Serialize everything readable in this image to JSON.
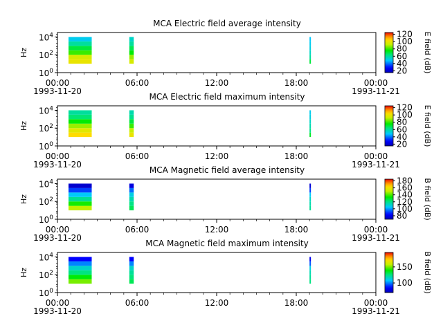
{
  "chart_data": [
    {
      "type": "heatmap",
      "title": "MCA  Electric field average intensity",
      "ylabel": "Hz",
      "yscale": "log",
      "ylim": [
        1,
        31623
      ],
      "yticks": [
        "10^4",
        "10^2",
        "10^0"
      ],
      "xlim": [
        "1993-11-20 00:00",
        "1993-11-21 00:00"
      ],
      "xticks": [
        "00:00",
        "06:00",
        "12:00",
        "18:00",
        "00:00"
      ],
      "xdates": [
        "1993-11-20",
        "1993-11-21"
      ],
      "colorbar": {
        "label": "E field (dB)",
        "min": 15,
        "max": 125,
        "ticks": [
          "120",
          "100",
          "80",
          "60",
          "40",
          "20"
        ],
        "tick_values": [
          120,
          100,
          80,
          60,
          40,
          20
        ]
      },
      "data_intervals": [
        {
          "start": "00:50",
          "end": "02:35",
          "freq_range": [
            10,
            10000
          ],
          "levels_dB_low_to_high_freq": [
            100,
            95,
            80,
            70,
            60,
            50
          ]
        },
        {
          "start": "05:25",
          "end": "05:45",
          "freq_range": [
            10,
            10000
          ],
          "levels_dB_low_to_high_freq": [
            95,
            88,
            75,
            68,
            60,
            55
          ]
        },
        {
          "start": "19:00",
          "end": "19:05",
          "freq_range": [
            10,
            10000
          ],
          "levels_dB_low_to_high_freq": [
            70,
            60,
            55,
            52,
            50,
            48
          ]
        }
      ]
    },
    {
      "type": "heatmap",
      "title": "MCA  Electric field maximum intensity",
      "ylabel": "Hz",
      "yscale": "log",
      "ylim": [
        1,
        31623
      ],
      "yticks": [
        "10^4",
        "10^2",
        "10^0"
      ],
      "xlim": [
        "1993-11-20 00:00",
        "1993-11-21 00:00"
      ],
      "xticks": [
        "00:00",
        "06:00",
        "12:00",
        "18:00",
        "00:00"
      ],
      "xdates": [
        "1993-11-20",
        "1993-11-21"
      ],
      "colorbar": {
        "label": "E field (dB)",
        "min": 15,
        "max": 125,
        "ticks": [
          "120",
          "100",
          "80",
          "60",
          "40",
          "20"
        ],
        "tick_values": [
          120,
          100,
          80,
          60,
          40,
          20
        ]
      },
      "data_intervals": [
        {
          "start": "00:50",
          "end": "02:35",
          "freq_range": [
            10,
            10000
          ],
          "levels_dB_low_to_high_freq": [
            105,
            98,
            88,
            75,
            65,
            60
          ]
        },
        {
          "start": "05:25",
          "end": "05:45",
          "freq_range": [
            10,
            10000
          ],
          "levels_dB_low_to_high_freq": [
            100,
            92,
            80,
            70,
            62,
            58
          ]
        },
        {
          "start": "19:00",
          "end": "19:05",
          "freq_range": [
            10,
            10000
          ],
          "levels_dB_low_to_high_freq": [
            72,
            62,
            58,
            55,
            52,
            50
          ]
        }
      ]
    },
    {
      "type": "heatmap",
      "title": "MCA  Magnetic field average intensity",
      "ylabel": "Hz",
      "yscale": "log",
      "ylim": [
        1,
        31623
      ],
      "yticks": [
        "10^4",
        "10^2",
        "10^0"
      ],
      "xlim": [
        "1993-11-20 00:00",
        "1993-11-21 00:00"
      ],
      "xticks": [
        "00:00",
        "06:00",
        "12:00",
        "18:00",
        "00:00"
      ],
      "xdates": [
        "1993-11-20",
        "1993-11-21"
      ],
      "colorbar": {
        "label": "B field (dB)",
        "min": 70,
        "max": 185,
        "ticks": [
          "180",
          "160",
          "140",
          "120",
          "100",
          "80"
        ],
        "tick_values": [
          180,
          160,
          140,
          120,
          100,
          80
        ]
      },
      "data_intervals": [
        {
          "start": "00:50",
          "end": "02:35",
          "freq_range": [
            10,
            10000
          ],
          "levels_dB_low_to_high_freq": [
            150,
            135,
            118,
            105,
            90,
            75
          ]
        },
        {
          "start": "05:25",
          "end": "05:45",
          "freq_range": [
            10,
            10000
          ],
          "levels_dB_low_to_high_freq": [
            125,
            120,
            115,
            108,
            95,
            78
          ]
        },
        {
          "start": "19:00",
          "end": "19:05",
          "freq_range": [
            10,
            10000
          ],
          "levels_dB_low_to_high_freq": [
            118,
            115,
            112,
            105,
            90,
            76
          ]
        }
      ]
    },
    {
      "type": "heatmap",
      "title": "MCA  Magnetic field maximum intensity",
      "ylabel": "Hz",
      "yscale": "log",
      "ylim": [
        1,
        31623
      ],
      "yticks": [
        "10^4",
        "10^2",
        "10^0"
      ],
      "xlim": [
        "1993-11-20 00:00",
        "1993-11-21 00:00"
      ],
      "xticks": [
        "00:00",
        "06:00",
        "12:00",
        "18:00",
        "00:00"
      ],
      "xdates": [
        "1993-11-20",
        "1993-11-21"
      ],
      "colorbar": {
        "label": "B field (dB)",
        "min": 70,
        "max": 195,
        "ticks": [
          "150",
          "100"
        ],
        "tick_values": [
          150,
          100
        ]
      },
      "data_intervals": [
        {
          "start": "00:50",
          "end": "02:35",
          "freq_range": [
            10,
            10000
          ],
          "levels_dB_low_to_high_freq": [
            150,
            138,
            125,
            115,
            100,
            85
          ]
        },
        {
          "start": "05:25",
          "end": "05:45",
          "freq_range": [
            10,
            10000
          ],
          "levels_dB_low_to_high_freq": [
            130,
            126,
            122,
            115,
            100,
            85
          ]
        },
        {
          "start": "19:00",
          "end": "19:05",
          "freq_range": [
            10,
            10000
          ],
          "levels_dB_low_to_high_freq": [
            125,
            122,
            118,
            112,
            95,
            82
          ]
        }
      ]
    }
  ]
}
